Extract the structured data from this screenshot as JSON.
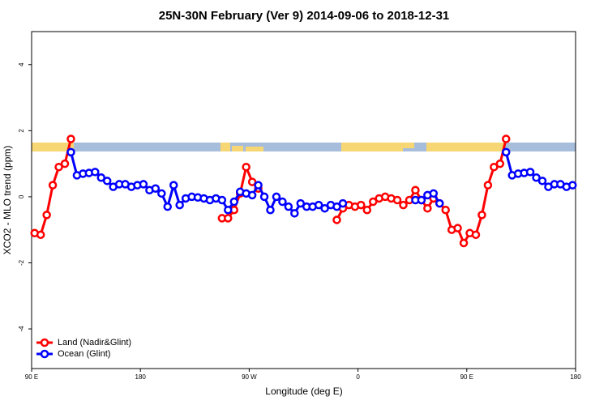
{
  "chart_data": {
    "type": "line",
    "title": "25N-30N February (Ver 9)   2014-09-06 to 2018-12-31",
    "xlabel": "Longitude (deg E)",
    "ylabel": "XCO2 - MLO trend (ppm)",
    "xlim": [
      90,
      540
    ],
    "ylim": [
      -5.2,
      5
    ],
    "xticks": [
      {
        "value": 90,
        "label": "90 E"
      },
      180,
      {
        "value": 270,
        "label": "90 W"
      },
      {
        "value": 360,
        "label": "0"
      },
      {
        "value": 450,
        "label": "90 E"
      },
      {
        "value": 540,
        "label": "180"
      }
    ],
    "yticks": [
      -4,
      -2,
      0,
      2,
      4
    ],
    "legend": "bottom-left",
    "x": [
      92.5,
      97.5,
      102.5,
      107.5,
      112.5,
      117.5,
      122.5,
      127.5,
      132.5,
      137.5,
      142.5,
      147.5,
      152.5,
      157.5,
      162.5,
      167.5,
      172.5,
      177.5,
      182.5,
      187.5,
      192.5,
      197.5,
      202.5,
      207.5,
      212.5,
      217.5,
      222.5,
      227.5,
      232.5,
      237.5,
      242.5,
      247.5,
      252.5,
      257.5,
      262.5,
      267.5,
      272.5,
      277.5,
      282.5,
      287.5,
      292.5,
      297.5,
      302.5,
      307.5,
      312.5,
      317.5,
      322.5,
      327.5,
      332.5,
      337.5,
      342.5,
      347.5,
      352.5,
      357.5,
      362.5,
      367.5,
      372.5,
      377.5,
      382.5,
      387.5,
      392.5,
      397.5,
      402.5,
      407.5,
      412.5,
      417.5,
      422.5,
      427.5,
      432.5,
      437.5,
      442.5,
      447.5,
      452.5,
      457.5,
      462.5,
      467.5,
      472.5,
      477.5,
      482.5,
      487.5,
      492.5,
      497.5,
      502.5,
      507.5,
      512.5,
      517.5,
      522.5,
      527.5,
      532.5,
      537.5
    ],
    "series": [
      {
        "name": "Land (Nadir&Glint)",
        "color": "#ff0000",
        "values": [
          -1.1,
          -1.15,
          -0.55,
          0.35,
          0.9,
          1.0,
          1.75,
          null,
          null,
          null,
          null,
          null,
          null,
          null,
          null,
          null,
          null,
          null,
          null,
          null,
          null,
          null,
          null,
          null,
          null,
          null,
          null,
          null,
          null,
          null,
          null,
          -0.65,
          -0.65,
          -0.4,
          0.1,
          0.9,
          0.45,
          0.25,
          null,
          null,
          null,
          null,
          null,
          null,
          null,
          null,
          null,
          null,
          null,
          null,
          -0.7,
          -0.35,
          -0.25,
          -0.3,
          -0.25,
          -0.4,
          -0.15,
          -0.05,
          0,
          -0.05,
          -0.1,
          -0.25,
          -0.1,
          0.2,
          -0.1,
          -0.35,
          -0.05,
          -0.2,
          -0.4,
          -1.0,
          -0.95,
          -1.4,
          -1.1,
          -1.15,
          -0.55,
          0.35,
          0.9,
          1.0,
          1.75,
          null,
          null,
          null,
          null,
          null,
          null,
          null,
          null,
          null,
          null,
          null
        ]
      },
      {
        "name": "Ocean (Glint)",
        "color": "#0000ff",
        "values": [
          null,
          null,
          null,
          null,
          null,
          null,
          1.35,
          0.65,
          0.7,
          0.72,
          0.75,
          0.58,
          0.48,
          0.3,
          0.38,
          0.38,
          0.3,
          0.35,
          0.38,
          0.2,
          0.25,
          0.1,
          -0.3,
          0.35,
          -0.25,
          -0.05,
          0,
          -0.02,
          -0.05,
          -0.1,
          -0.05,
          -0.1,
          -0.4,
          -0.15,
          0.15,
          0.1,
          0.05,
          0.35,
          0,
          -0.4,
          0,
          -0.15,
          -0.3,
          -0.5,
          -0.2,
          -0.3,
          -0.3,
          -0.25,
          -0.35,
          -0.25,
          -0.3,
          -0.2,
          null,
          null,
          null,
          null,
          null,
          null,
          null,
          null,
          null,
          null,
          null,
          -0.1,
          -0.1,
          0.05,
          0.1,
          -0.2,
          null,
          null,
          null,
          null,
          null,
          null,
          null,
          null,
          null,
          null,
          1.35,
          0.65,
          0.7,
          0.72,
          0.75,
          0.58,
          0.48,
          0.3,
          0.38,
          0.38,
          0.3,
          0.35
        ]
      }
    ]
  }
}
